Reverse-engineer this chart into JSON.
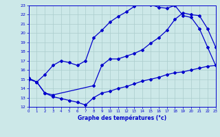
{
  "xlabel": "Graphe des températures (°c)",
  "bg_color": "#cce8e8",
  "grid_color": "#aacccc",
  "line_color": "#0000cc",
  "xlim": [
    0,
    23
  ],
  "ylim": [
    12,
    23
  ],
  "yticks": [
    12,
    13,
    14,
    15,
    16,
    17,
    18,
    19,
    20,
    21,
    22,
    23
  ],
  "xticks": [
    0,
    1,
    2,
    3,
    4,
    5,
    6,
    7,
    8,
    9,
    10,
    11,
    12,
    13,
    14,
    15,
    16,
    17,
    18,
    19,
    20,
    21,
    22,
    23
  ],
  "line1_x": [
    0,
    1,
    2,
    3,
    4,
    5,
    6,
    7,
    8,
    9,
    10,
    11,
    12,
    13,
    14,
    15,
    16,
    17,
    18,
    19,
    20,
    21,
    22,
    23
  ],
  "line1_y": [
    15.1,
    14.7,
    15.5,
    16.5,
    17.0,
    16.8,
    16.5,
    17.0,
    19.5,
    20.3,
    21.2,
    21.8,
    22.3,
    22.9,
    23.3,
    23.1,
    22.8,
    22.7,
    23.0,
    21.9,
    21.7,
    20.5,
    18.5,
    16.5
  ],
  "line2_x": [
    0,
    1,
    2,
    3,
    8,
    9,
    10,
    11,
    12,
    13,
    14,
    15,
    16,
    17,
    18,
    19,
    20,
    21,
    22,
    23
  ],
  "line2_y": [
    15.1,
    14.7,
    13.5,
    13.3,
    14.3,
    16.5,
    17.2,
    17.2,
    17.5,
    17.8,
    18.2,
    18.9,
    19.5,
    20.3,
    21.5,
    22.2,
    22.0,
    21.9,
    20.5,
    18.5
  ],
  "line3_x": [
    0,
    1,
    2,
    3,
    4,
    5,
    6,
    7,
    8,
    9,
    10,
    11,
    12,
    13,
    14,
    15,
    16,
    17,
    18,
    19,
    20,
    21,
    22,
    23
  ],
  "line3_y": [
    15.0,
    14.7,
    13.5,
    13.1,
    12.9,
    12.7,
    12.5,
    12.2,
    13.0,
    13.5,
    13.7,
    14.0,
    14.2,
    14.5,
    14.8,
    15.0,
    15.2,
    15.5,
    15.7,
    15.8,
    16.0,
    16.2,
    16.4,
    16.5
  ]
}
